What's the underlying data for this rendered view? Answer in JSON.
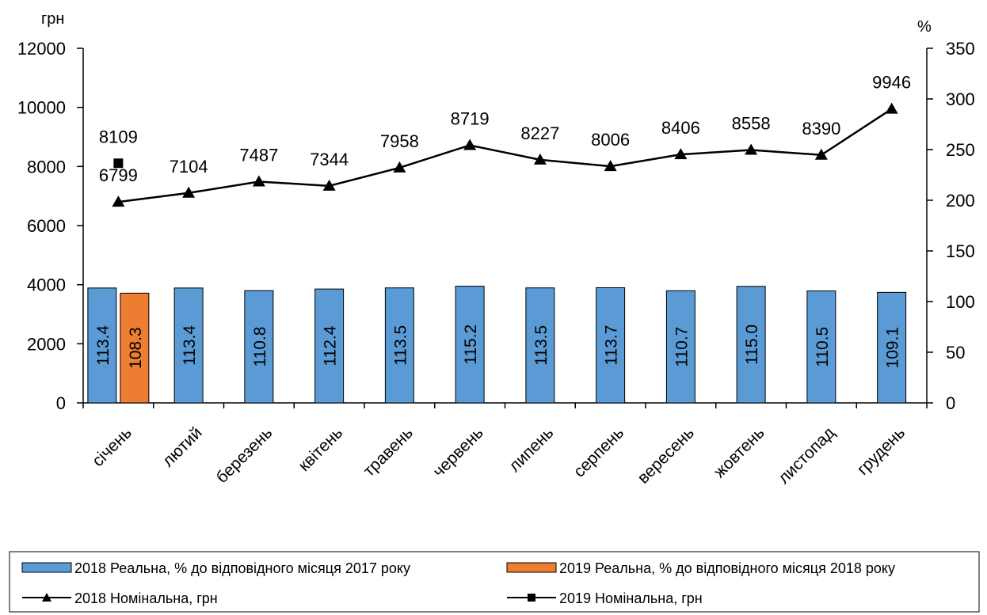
{
  "chart_data": {
    "type": "bar",
    "categories": [
      "січень",
      "лютий",
      "березень",
      "квітень",
      "травень",
      "червень",
      "липень",
      "серпень",
      "вересень",
      "жовтень",
      "листопад",
      "грудень"
    ],
    "left_axis": {
      "unit_label": "грн",
      "range": [
        0,
        12000
      ],
      "ticks": [
        0,
        2000,
        4000,
        6000,
        8000,
        10000,
        12000
      ]
    },
    "right_axis": {
      "unit_label": "%",
      "range": [
        0,
        350
      ],
      "ticks": [
        0,
        50,
        100,
        150,
        200,
        250,
        300,
        350
      ]
    },
    "bar_series": [
      {
        "name": "2018 Реальна, % до відповідного місяця 2017 року",
        "color": "#5B9BD5",
        "values": [
          113.4,
          113.4,
          110.8,
          112.4,
          113.5,
          115.2,
          113.5,
          113.7,
          110.7,
          115.0,
          110.5,
          109.1
        ],
        "labels": [
          "113.4",
          "113.4",
          "110.8",
          "112.4",
          "113.5",
          "115.2",
          "113.5",
          "113.7",
          "110.7",
          "115.0",
          "110.5",
          "109.1"
        ]
      },
      {
        "name": "2019 Реальна, % до відповідного місяця 2018 року",
        "color": "#ED7D31",
        "values": [
          108.3,
          null,
          null,
          null,
          null,
          null,
          null,
          null,
          null,
          null,
          null,
          null
        ],
        "labels": [
          "108.3",
          "",
          "",
          "",
          "",
          "",
          "",
          "",
          "",
          "",
          "",
          ""
        ]
      }
    ],
    "line_series": [
      {
        "name": "2018 Номінальна, грн",
        "marker": "triangle",
        "values": [
          6799,
          7104,
          7487,
          7344,
          7958,
          8719,
          8227,
          8006,
          8406,
          8558,
          8390,
          9946
        ]
      },
      {
        "name": "2019 Номінальна, грн",
        "marker": "square",
        "values": [
          8109,
          null,
          null,
          null,
          null,
          null,
          null,
          null,
          null,
          null,
          null,
          null
        ]
      }
    ],
    "grid": false,
    "legend_position": "bottom"
  }
}
